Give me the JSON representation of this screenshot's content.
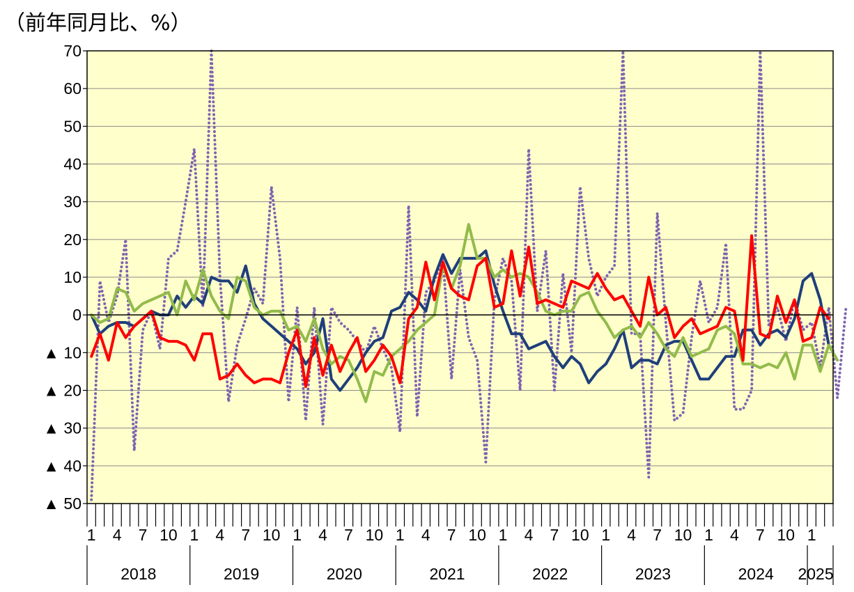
{
  "unit_label": "（前年同月比、%）",
  "chart_data": {
    "type": "line",
    "ylim": [
      -50,
      70
    ],
    "yticks": [
      70,
      60,
      50,
      40,
      30,
      20,
      10,
      0,
      -10,
      -20,
      -30,
      -40,
      -50
    ],
    "ytick_labels": [
      "70",
      "60",
      "50",
      "40",
      "30",
      "20",
      "10",
      "0",
      "▲ 10",
      "▲ 20",
      "▲ 30",
      "▲ 40",
      "▲ 50"
    ],
    "month_tick_labels": [
      "1",
      "4",
      "7",
      "10"
    ],
    "years": [
      "2018",
      "2019",
      "2020",
      "2021",
      "2022",
      "2023",
      "2024",
      "2025"
    ],
    "grid": true,
    "background": "#ffffcc",
    "series": [
      {
        "color": "#1f3f7a",
        "style": "solid",
        "values": [
          0,
          -5,
          -3,
          -2,
          -2,
          -3,
          -1,
          1,
          0,
          0,
          5,
          2,
          5,
          3,
          10,
          9,
          9,
          6,
          13,
          3,
          -1,
          -3,
          -5,
          -7,
          -9,
          -13,
          -10,
          -1,
          -17,
          -20,
          -17,
          -14,
          -10,
          -7,
          -6,
          1,
          2,
          6,
          4,
          1,
          10,
          16,
          11,
          15,
          15,
          15,
          17,
          8,
          1,
          -5,
          -5,
          -9,
          -8,
          -7,
          -11,
          -14,
          -11,
          -13,
          -18,
          -15,
          -13,
          -9,
          -4,
          -14,
          -12,
          -12,
          -13,
          -8,
          -7,
          -7,
          -12,
          -17,
          -17,
          -14,
          -11,
          -11,
          -4,
          -4,
          -8,
          -5,
          -4,
          -6,
          -1,
          9,
          11,
          4,
          -8
        ]
      },
      {
        "color": "#ff0000",
        "style": "solid",
        "values": [
          -11,
          -5,
          -12,
          -2,
          -6,
          -3,
          -1,
          1,
          -6,
          -7,
          -7,
          -8,
          -12,
          -5,
          -5,
          -17,
          -16,
          -13,
          -16,
          -18,
          -17,
          -17,
          -18,
          -10,
          -4,
          -19,
          -6,
          -16,
          -8,
          -15,
          -10,
          -6,
          -15,
          -12,
          -8,
          -11,
          -18,
          -1,
          2,
          14,
          4,
          14,
          7,
          5,
          4,
          13,
          15,
          2,
          3,
          17,
          5,
          18,
          3,
          4,
          3,
          2,
          9,
          8,
          7,
          11,
          7,
          4,
          5,
          1,
          -3,
          10,
          0,
          2,
          -6,
          -3,
          -1,
          -5,
          -4,
          -3,
          2,
          1,
          -12,
          21,
          -5,
          -6,
          5,
          -2,
          4,
          -7,
          -6,
          2,
          -1
        ]
      },
      {
        "color": "#92bb4b",
        "style": "solid",
        "values": [
          0,
          -2,
          -1,
          7,
          6,
          1,
          3,
          4,
          5,
          6,
          0,
          9,
          4,
          12,
          5,
          1,
          -1,
          10,
          9,
          2,
          0,
          1,
          1,
          -4,
          -3,
          -7,
          -1,
          -9,
          -13,
          -11,
          -12,
          -17,
          -23,
          -15,
          -16,
          -11,
          -9,
          -7,
          -4,
          -2,
          0,
          13,
          7,
          13,
          24,
          15,
          15,
          10,
          12,
          10,
          11,
          10,
          6,
          1,
          0,
          1,
          1,
          5,
          6,
          1,
          -2,
          -6,
          -4,
          -3,
          -6,
          -2,
          -5,
          -9,
          -11,
          -6,
          -11,
          -10,
          -9,
          -4,
          -3,
          -5,
          -13,
          -13,
          -14,
          -13,
          -14,
          -10,
          -17,
          -8,
          -8,
          -15,
          -8,
          -12
        ]
      },
      {
        "color": "#7f64b0",
        "style": "dotted",
        "values": [
          -49,
          9,
          -2,
          5,
          20,
          -36,
          -4,
          1,
          -9,
          15,
          17,
          30,
          44,
          2,
          70,
          10,
          -23,
          -8,
          -1,
          7,
          3,
          34,
          15,
          -23,
          2,
          -28,
          2,
          -29,
          2,
          -2,
          -4,
          -7,
          -10,
          -3,
          -9,
          -14,
          -31,
          29,
          -27,
          6,
          9,
          15,
          -17,
          12,
          -6,
          -12,
          -39,
          4,
          15,
          9,
          -20,
          44,
          1,
          17,
          -20,
          11,
          -10,
          34,
          15,
          5,
          10,
          13,
          70,
          -5,
          -5,
          -43,
          27,
          -2,
          -28,
          -26,
          -6,
          9,
          -2,
          2,
          19,
          -25,
          -25,
          -20,
          70,
          -3,
          2,
          -7,
          4,
          -4,
          -2,
          -14,
          2,
          -22,
          2
        ]
      }
    ]
  }
}
